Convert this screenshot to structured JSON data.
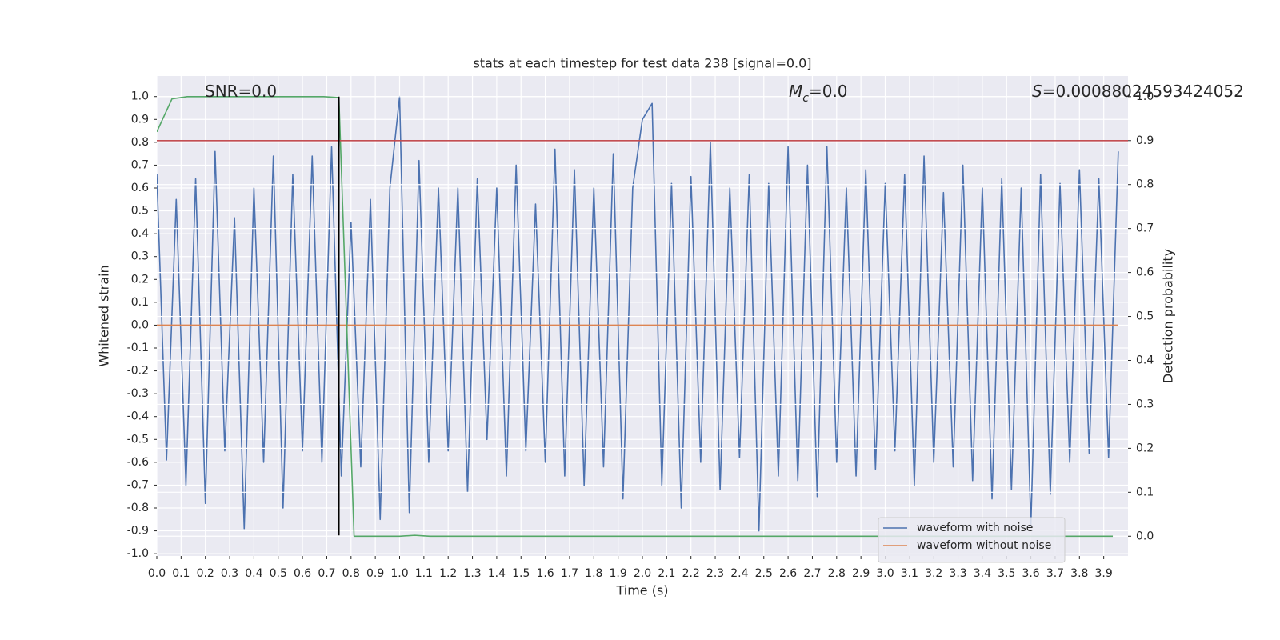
{
  "chart_data": {
    "type": "line",
    "title": "stats at each timestep for test data 238 [signal=0.0]",
    "xlabel": "Time (s)",
    "ylabel": "Whitened strain",
    "y2label": "Detection probability",
    "xlim": [
      0,
      4.0
    ],
    "ylim": [
      -1.01,
      1.09
    ],
    "y2lim": [
      -0.045,
      1.047
    ],
    "xticks": [
      {
        "value": 0,
        "label": "0.0"
      },
      0.1,
      0.2,
      0.3,
      0.4,
      0.5,
      0.6,
      0.7,
      0.8,
      0.9,
      {
        "value": 1,
        "label": "1.0"
      },
      1.1,
      1.2,
      1.3,
      1.4,
      1.5,
      1.6,
      1.7,
      1.8,
      1.9,
      {
        "value": 2,
        "label": "2.0"
      },
      2.1,
      2.2,
      2.3,
      2.4,
      2.5,
      2.6,
      2.7,
      2.8,
      2.9,
      {
        "value": 3,
        "label": "3.0"
      },
      3.1,
      3.2,
      3.3,
      3.4,
      3.5,
      3.6,
      3.7,
      3.8,
      3.9
    ],
    "yticks": [
      {
        "value": -1,
        "label": "-1.0"
      },
      -0.9,
      -0.8,
      -0.7,
      -0.6,
      -0.5,
      -0.4,
      -0.3,
      -0.2,
      -0.1,
      {
        "value": 0,
        "label": "0.0"
      },
      0.1,
      0.2,
      0.3,
      0.4,
      0.5,
      0.6,
      0.7,
      0.8,
      0.9,
      {
        "value": 1,
        "label": "1.0"
      }
    ],
    "y2ticks": [
      {
        "value": 0,
        "label": "0.0"
      },
      0.1,
      0.2,
      0.3,
      0.4,
      0.5,
      0.6,
      0.7,
      0.8,
      0.9,
      {
        "value": 1,
        "label": "1.0"
      }
    ],
    "grid": true,
    "legend": "lower right",
    "series": [
      {
        "name": "waveform with noise",
        "color": "#4c72b0",
        "x": [
          0,
          0.04,
          0.08,
          0.12,
          0.16,
          0.2,
          0.24,
          0.28,
          0.32,
          0.36,
          0.4,
          0.44,
          0.48,
          0.52,
          0.56,
          0.6,
          0.64,
          0.68,
          0.72,
          0.76,
          0.8,
          0.84,
          0.88,
          0.92,
          0.96,
          1,
          1.04,
          1.08,
          1.12,
          1.16,
          1.2,
          1.24,
          1.28,
          1.32,
          1.36,
          1.4,
          1.44,
          1.48,
          1.52,
          1.56,
          1.6,
          1.64,
          1.68,
          1.72,
          1.76,
          1.8,
          1.84,
          1.88,
          1.92,
          1.96,
          2,
          2.04,
          2.08,
          2.12,
          2.16,
          2.2,
          2.24,
          2.28,
          2.32,
          2.36,
          2.4,
          2.44,
          2.48,
          2.52,
          2.56,
          2.6,
          2.64,
          2.68,
          2.72,
          2.76,
          2.8,
          2.84,
          2.88,
          2.92,
          2.96,
          3,
          3.04,
          3.08,
          3.12,
          3.16,
          3.2,
          3.24,
          3.28,
          3.32,
          3.36,
          3.4,
          3.44,
          3.48,
          3.52,
          3.56,
          3.6,
          3.64,
          3.68,
          3.72,
          3.76,
          3.8,
          3.84,
          3.88,
          3.92,
          3.96
        ],
        "values": [
          0.66,
          -0.59,
          0.55,
          -0.7,
          0.64,
          -0.78,
          0.76,
          -0.55,
          0.47,
          -0.89,
          0.6,
          -0.6,
          0.74,
          -0.8,
          0.66,
          -0.55,
          0.74,
          -0.6,
          0.78,
          -0.66,
          0.45,
          -0.62,
          0.55,
          -0.85,
          0.6,
          1,
          -0.82,
          0.72,
          -0.6,
          0.6,
          -0.55,
          0.6,
          -0.73,
          0.64,
          -0.5,
          0.6,
          -0.66,
          0.7,
          -0.55,
          0.53,
          -0.6,
          0.77,
          -0.66,
          0.68,
          -0.7,
          0.6,
          -0.62,
          0.75,
          -0.76,
          0.6,
          0.9,
          0.97,
          -0.7,
          0.62,
          -0.8,
          0.65,
          -0.6,
          0.8,
          -0.72,
          0.6,
          -0.58,
          0.66,
          -0.9,
          0.62,
          -0.66,
          0.78,
          -0.68,
          0.7,
          -0.75,
          0.78,
          -0.6,
          0.6,
          -0.66,
          0.68,
          -0.63,
          0.62,
          -0.55,
          0.66,
          -0.7,
          0.74,
          -0.6,
          0.58,
          -0.62,
          0.7,
          -0.68,
          0.6,
          -0.76,
          0.64,
          -0.72,
          0.6,
          -0.88,
          0.66,
          -0.74,
          0.62,
          -0.6,
          0.68,
          -0.56,
          0.64,
          -0.58,
          0.76
        ]
      },
      {
        "name": "waveform without noise",
        "color": "#dd8452",
        "x": [
          0,
          3.96
        ],
        "values": [
          0,
          0
        ]
      },
      {
        "color": "#55a868",
        "axis": "y2",
        "x": [
          0,
          0.0625,
          0.125,
          0.6875,
          0.75,
          0.8125,
          1.0,
          1.0625,
          1.125,
          3.9375
        ],
        "values": [
          0.92,
          0.995,
          1.0,
          1.0,
          0.998,
          0.0,
          0.0,
          0.002,
          0.0,
          0.0
        ]
      }
    ],
    "hlines": [
      {
        "y": 0.9,
        "axis": "y2",
        "color": "#c44e52"
      }
    ],
    "vlines": [
      {
        "x": 0.75,
        "ymin": -0.92,
        "ymax": 1.0,
        "color": "#000000"
      }
    ],
    "annotations": [
      {
        "text": "SNR=0.0"
      },
      {
        "symbol": "M",
        "subscript": "c",
        "text": "=0.0"
      },
      {
        "symbol": "S",
        "text": "=0.00088024593424052"
      }
    ]
  }
}
